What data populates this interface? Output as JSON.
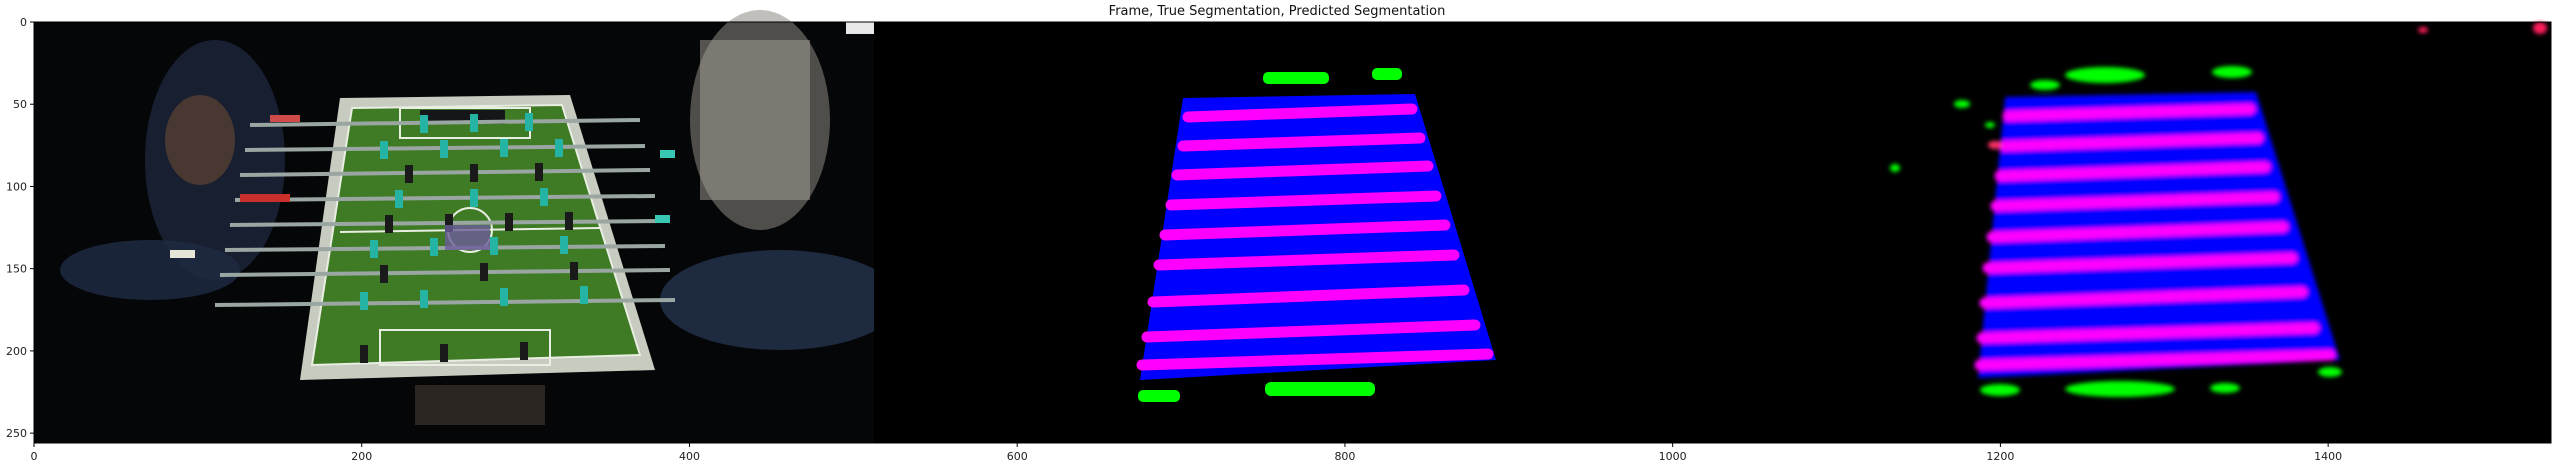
{
  "figure": {
    "title": "Frame, True Segmentation, Predicted Segmentation"
  },
  "axes": {
    "x_ticks": [
      0,
      200,
      400,
      600,
      800,
      1000,
      1200,
      1400
    ],
    "y_ticks": [
      0,
      50,
      100,
      150,
      200,
      250
    ],
    "x_range": [
      0,
      1536
    ],
    "y_range": [
      0,
      256
    ]
  },
  "panels": [
    {
      "id": "frame",
      "description": "camera frame of foosball table"
    },
    {
      "id": "true-segmentation"
    },
    {
      "id": "predicted-segmentation"
    }
  ],
  "colors": {
    "table": "#0000ff",
    "rods": "#ff00ff",
    "hands": "#00ff00",
    "background": "#000000",
    "frame_field": "#3f7a25"
  }
}
